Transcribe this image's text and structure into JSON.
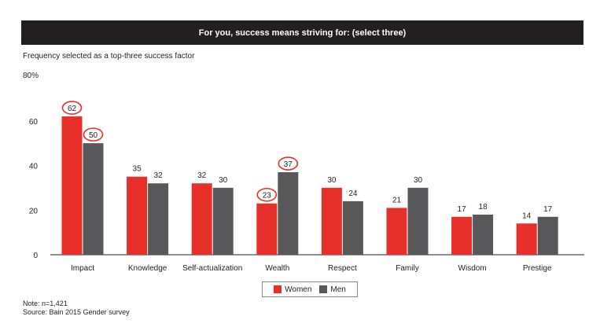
{
  "header": {
    "title": "For you, success means striving for: (select three)",
    "subtitle": "Frequency selected as a top-three success factor"
  },
  "colors": {
    "women": "#e8302a",
    "men": "#58585a",
    "header_bg": "#231f20",
    "highlight_circle": "#e8302a"
  },
  "chart_data": {
    "type": "bar",
    "categories": [
      "Impact",
      "Knowledge",
      "Self-actualization",
      "Wealth",
      "Respect",
      "Family",
      "Wisdom",
      "Prestige"
    ],
    "series": [
      {
        "name": "Women",
        "values": [
          62,
          35,
          32,
          23,
          30,
          21,
          17,
          14
        ]
      },
      {
        "name": "Men",
        "values": [
          50,
          32,
          30,
          37,
          24,
          30,
          18,
          17
        ]
      }
    ],
    "ylim": [
      0,
      80
    ],
    "yticks": [
      "0",
      "20",
      "40",
      "60",
      "80%"
    ],
    "highlighted": [
      {
        "category": "Impact",
        "series": "Women"
      },
      {
        "category": "Impact",
        "series": "Men"
      },
      {
        "category": "Wealth",
        "series": "Women"
      },
      {
        "category": "Wealth",
        "series": "Men"
      }
    ],
    "legend": "bottom-center",
    "grid": false
  },
  "legend": {
    "women_label": "Women",
    "men_label": "Men"
  },
  "footer": {
    "note": "Note: n=1,421",
    "source": "Source: Bain 2015 Gender survey"
  }
}
